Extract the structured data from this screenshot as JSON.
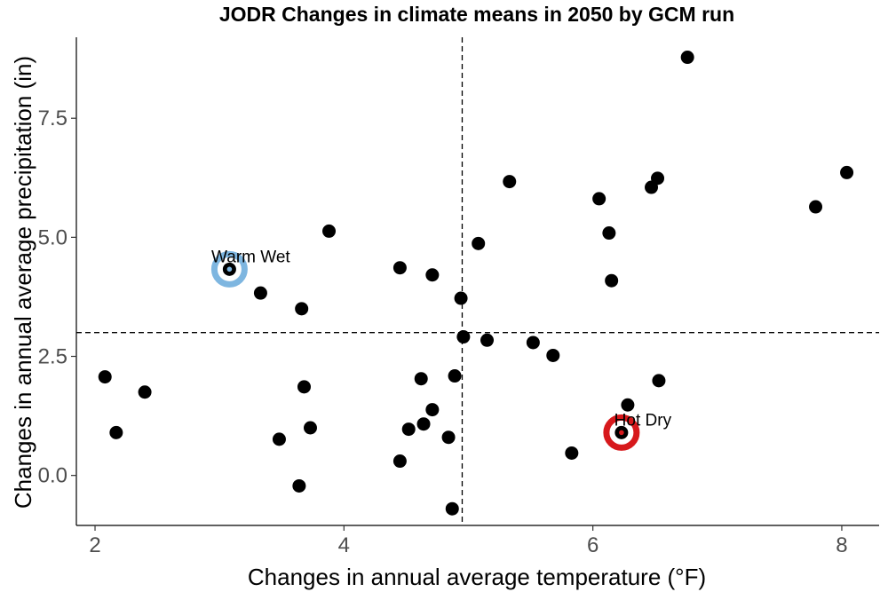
{
  "chart_data": {
    "type": "scatter",
    "title": "JODR Changes in climate means in 2050 by GCM run",
    "xlabel": "Changes in annual average temperature (°F)",
    "ylabel": "Changes in annual average precipitation (in)",
    "xlim": [
      1.85,
      8.3
    ],
    "ylim": [
      -1.05,
      9.2
    ],
    "x_ticks": [
      2,
      4,
      6,
      8
    ],
    "x_tick_labels": [
      "2",
      "4",
      "6",
      "8"
    ],
    "y_ticks": [
      0,
      2.5,
      5,
      7.5
    ],
    "y_tick_labels": [
      "0.0",
      "2.5",
      "5.0",
      "7.5"
    ],
    "grid": false,
    "reference_lines": {
      "x": 4.95,
      "y": 3.0
    },
    "points": [
      {
        "x": 2.08,
        "y": 2.07
      },
      {
        "x": 2.17,
        "y": 0.9
      },
      {
        "x": 2.4,
        "y": 1.75
      },
      {
        "x": 3.08,
        "y": 4.33
      },
      {
        "x": 3.33,
        "y": 3.83
      },
      {
        "x": 3.48,
        "y": 0.76
      },
      {
        "x": 3.64,
        "y": -0.22
      },
      {
        "x": 3.66,
        "y": 3.5
      },
      {
        "x": 3.68,
        "y": 1.86
      },
      {
        "x": 3.73,
        "y": 1.0
      },
      {
        "x": 3.88,
        "y": 5.13
      },
      {
        "x": 4.45,
        "y": 4.36
      },
      {
        "x": 4.45,
        "y": 0.3
      },
      {
        "x": 4.52,
        "y": 0.97
      },
      {
        "x": 4.62,
        "y": 2.03
      },
      {
        "x": 4.64,
        "y": 1.08
      },
      {
        "x": 4.71,
        "y": 4.21
      },
      {
        "x": 4.71,
        "y": 1.38
      },
      {
        "x": 4.84,
        "y": 0.8
      },
      {
        "x": 4.87,
        "y": -0.7
      },
      {
        "x": 4.89,
        "y": 2.09
      },
      {
        "x": 4.94,
        "y": 3.72
      },
      {
        "x": 4.96,
        "y": 2.91
      },
      {
        "x": 5.08,
        "y": 4.87
      },
      {
        "x": 5.15,
        "y": 2.84
      },
      {
        "x": 5.33,
        "y": 6.17
      },
      {
        "x": 5.52,
        "y": 2.79
      },
      {
        "x": 5.68,
        "y": 2.52
      },
      {
        "x": 5.83,
        "y": 0.47
      },
      {
        "x": 6.05,
        "y": 5.81
      },
      {
        "x": 6.13,
        "y": 5.09
      },
      {
        "x": 6.15,
        "y": 4.09
      },
      {
        "x": 6.23,
        "y": 0.9
      },
      {
        "x": 6.28,
        "y": 1.48
      },
      {
        "x": 6.47,
        "y": 6.05
      },
      {
        "x": 6.52,
        "y": 6.24
      },
      {
        "x": 6.53,
        "y": 1.99
      },
      {
        "x": 6.76,
        "y": 8.78
      },
      {
        "x": 7.79,
        "y": 5.64
      },
      {
        "x": 8.04,
        "y": 6.36
      }
    ],
    "highlights": [
      {
        "label": "Warm Wet",
        "x": 3.08,
        "y": 4.33,
        "color": "#7eb6e0"
      },
      {
        "label": "Hot Dry",
        "x": 6.23,
        "y": 0.9,
        "color": "#d7191c"
      }
    ]
  }
}
